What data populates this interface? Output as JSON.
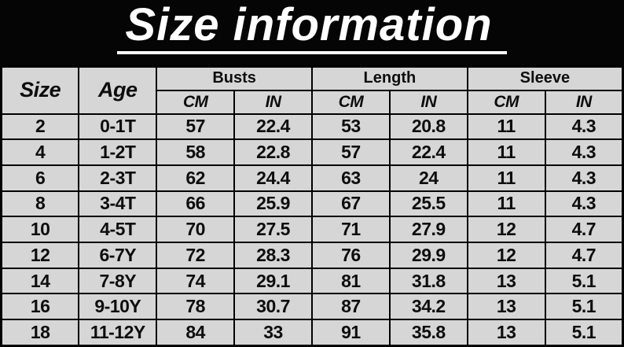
{
  "title": "Size information",
  "colors": {
    "title_bg": "#050505",
    "title_fg": "#ffffff",
    "cell_bg": "#d6d6d6",
    "grid_border": "#000000",
    "cell_text": "#0d0d0d"
  },
  "table": {
    "corner_headers": {
      "size": "Size",
      "age": "Age"
    },
    "group_headers": {
      "busts": "Busts",
      "length": "Length",
      "sleeve": "Sleeve"
    },
    "unit_headers": {
      "busts_cm": "CM",
      "busts_in": "IN",
      "length_cm": "CM",
      "length_in": "IN",
      "sleeve_cm": "CM",
      "sleeve_in": "IN"
    },
    "column_keys": [
      "size",
      "age",
      "bust_cm",
      "bust_in",
      "length_cm",
      "length_in",
      "sleeve_cm",
      "sleeve_in"
    ],
    "rows": [
      {
        "size": "2",
        "age": "0-1T",
        "bust_cm": "57",
        "bust_in": "22.4",
        "length_cm": "53",
        "length_in": "20.8",
        "sleeve_cm": "11",
        "sleeve_in": "4.3"
      },
      {
        "size": "4",
        "age": "1-2T",
        "bust_cm": "58",
        "bust_in": "22.8",
        "length_cm": "57",
        "length_in": "22.4",
        "sleeve_cm": "11",
        "sleeve_in": "4.3"
      },
      {
        "size": "6",
        "age": "2-3T",
        "bust_cm": "62",
        "bust_in": "24.4",
        "length_cm": "63",
        "length_in": "24",
        "sleeve_cm": "11",
        "sleeve_in": "4.3"
      },
      {
        "size": "8",
        "age": "3-4T",
        "bust_cm": "66",
        "bust_in": "25.9",
        "length_cm": "67",
        "length_in": "25.5",
        "sleeve_cm": "11",
        "sleeve_in": "4.3"
      },
      {
        "size": "10",
        "age": "4-5T",
        "bust_cm": "70",
        "bust_in": "27.5",
        "length_cm": "71",
        "length_in": "27.9",
        "sleeve_cm": "12",
        "sleeve_in": "4.7"
      },
      {
        "size": "12",
        "age": "6-7Y",
        "bust_cm": "72",
        "bust_in": "28.3",
        "length_cm": "76",
        "length_in": "29.9",
        "sleeve_cm": "12",
        "sleeve_in": "4.7"
      },
      {
        "size": "14",
        "age": "7-8Y",
        "bust_cm": "74",
        "bust_in": "29.1",
        "length_cm": "81",
        "length_in": "31.8",
        "sleeve_cm": "13",
        "sleeve_in": "5.1"
      },
      {
        "size": "16",
        "age": "9-10Y",
        "bust_cm": "78",
        "bust_in": "30.7",
        "length_cm": "87",
        "length_in": "34.2",
        "sleeve_cm": "13",
        "sleeve_in": "5.1"
      },
      {
        "size": "18",
        "age": "11-12Y",
        "bust_cm": "84",
        "bust_in": "33",
        "length_cm": "91",
        "length_in": "35.8",
        "sleeve_cm": "13",
        "sleeve_in": "5.1"
      }
    ]
  }
}
